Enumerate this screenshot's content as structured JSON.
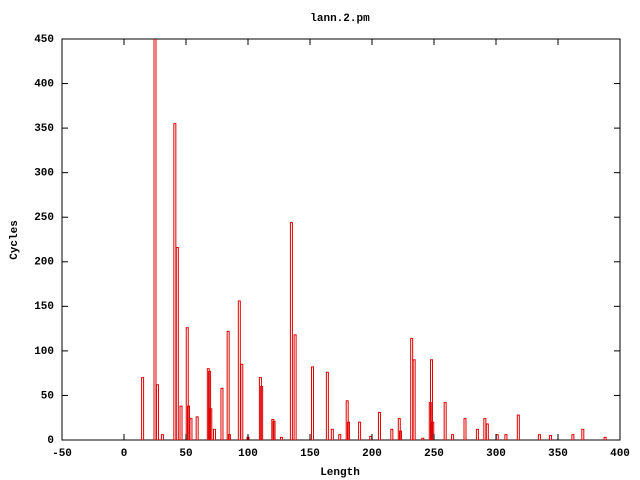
{
  "chart_data": {
    "type": "bar",
    "title": "lann.2.pm",
    "x_label": "Length",
    "y_label": "Cycles",
    "color": "#e00000",
    "x": [
      15,
      25,
      27,
      31,
      41,
      43,
      46,
      51,
      52,
      54,
      59,
      68,
      69,
      70,
      73,
      79,
      84,
      85,
      93,
      95,
      100,
      110,
      111,
      120,
      121,
      127,
      135,
      138,
      152,
      164,
      168,
      174,
      180,
      181,
      190,
      199,
      206,
      216,
      222,
      223,
      232,
      234,
      241,
      247,
      248,
      249,
      259,
      265,
      275,
      285,
      291,
      293,
      301,
      308,
      318,
      335,
      344,
      362,
      370,
      388
    ],
    "values": [
      70,
      470,
      62,
      6,
      355,
      216,
      38,
      126,
      38,
      24,
      26,
      80,
      77,
      35,
      12,
      58,
      122,
      6,
      156,
      85,
      3,
      70,
      60,
      23,
      21,
      3,
      244,
      118,
      82,
      76,
      12,
      6,
      44,
      20,
      20,
      4,
      31,
      12,
      24,
      10,
      114,
      90,
      2,
      42,
      90,
      20,
      42,
      6,
      24,
      12,
      24,
      18,
      6,
      6,
      28,
      6,
      5,
      6,
      12,
      3
    ],
    "xlim": [
      -50,
      400
    ],
    "ylim": [
      0,
      450
    ],
    "xticks": [
      -50,
      0,
      50,
      100,
      150,
      200,
      250,
      300,
      350,
      400
    ],
    "yticks": [
      0,
      50,
      100,
      150,
      200,
      250,
      300,
      350,
      400,
      450
    ]
  }
}
